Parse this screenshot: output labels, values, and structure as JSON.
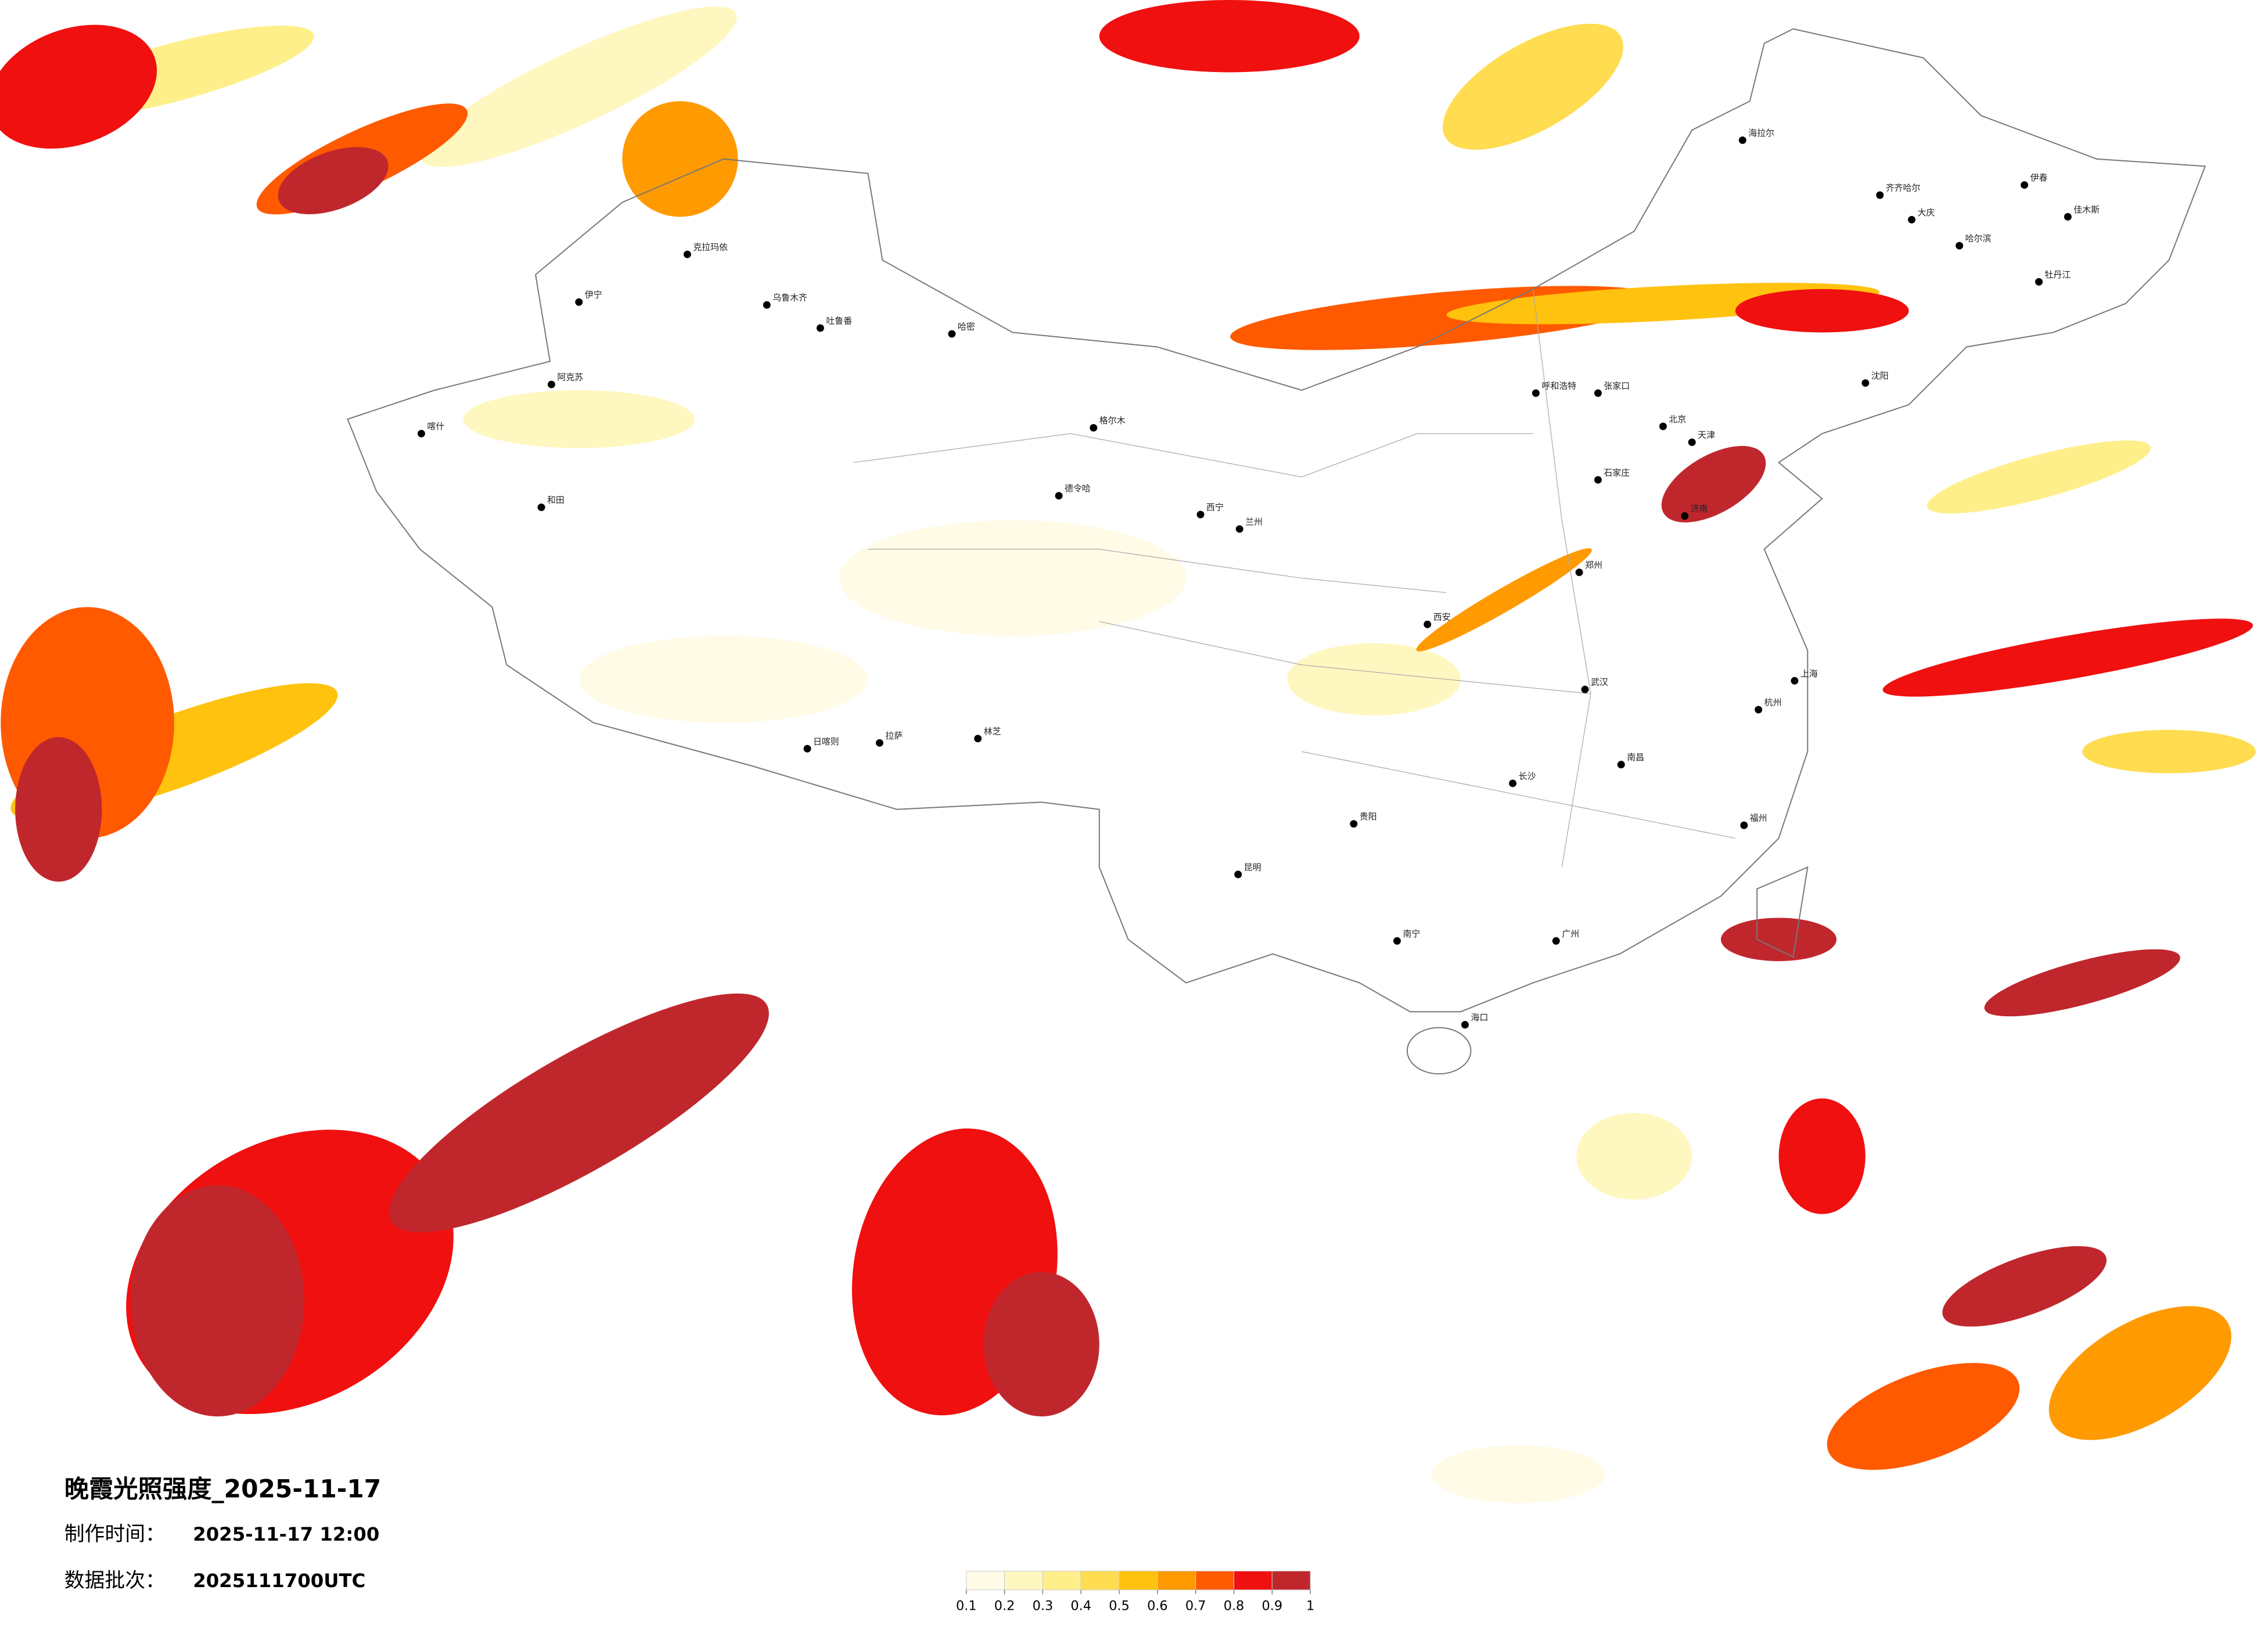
{
  "title": "晚霞光照强度_2025-11-17",
  "produced": {
    "label": "制作时间：",
    "value": "2025-11-17 12:00"
  },
  "batch": {
    "label": "数据批次：",
    "value": "2025111700UTC"
  },
  "legend": {
    "ticks": [
      0.1,
      0.2,
      0.3,
      0.4,
      0.5,
      0.6,
      0.7,
      0.8,
      0.9,
      1
    ],
    "colors": [
      "#fffbe6",
      "#fff7c0",
      "#ffef8a",
      "#ffdc50",
      "#ffc20e",
      "#ff9a00",
      "#ff5a00",
      "#f01010",
      "#c0272d"
    ]
  },
  "cities": [
    "北京",
    "天津",
    "石家庄",
    "呼和浩特",
    "张家口",
    "哈尔滨",
    "齐齐哈尔",
    "海拉尔",
    "伊春",
    "佳木斯",
    "牡丹江",
    "大庆",
    "沈阳",
    "济南",
    "郑州",
    "西安",
    "兰州",
    "西宁",
    "拉萨",
    "日喀则",
    "林芝",
    "乌鲁木齐",
    "克拉玛依",
    "伊宁",
    "阿克苏",
    "喀什",
    "和田",
    "哈密",
    "吐鲁番",
    "格尔木",
    "德令哈",
    "昆明",
    "贵阳",
    "南宁",
    "海口",
    "长沙",
    "武汉",
    "南昌",
    "上海",
    "杭州",
    "福州",
    "广州"
  ]
}
